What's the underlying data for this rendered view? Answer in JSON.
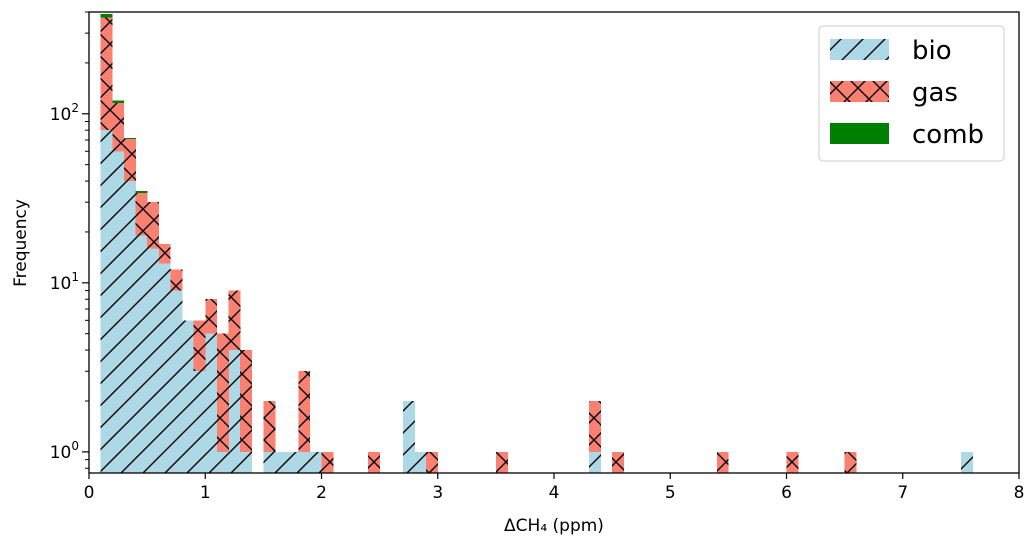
{
  "chart_data": {
    "type": "bar",
    "stacked": true,
    "log_y": true,
    "xlabel": "ΔCH₄  (ppm)",
    "ylabel": "Frequency",
    "xlim": [
      0,
      8
    ],
    "ylim": [
      0.75,
      400
    ],
    "bin_width": 0.1,
    "x_ticks": [
      "0",
      "1",
      "2",
      "3",
      "4",
      "5",
      "6",
      "7",
      "8"
    ],
    "y_ticks": [
      {
        "base": "10",
        "exp": "0"
      },
      {
        "base": "10",
        "exp": "1"
      },
      {
        "base": "10",
        "exp": "2"
      }
    ],
    "legend_position": "top-right",
    "series": [
      {
        "name": "bio",
        "color": "#add8e6",
        "hatch": "diagonal",
        "bins": [
          {
            "x0": 0.1,
            "v": 80
          },
          {
            "x0": 0.2,
            "v": 60
          },
          {
            "x0": 0.3,
            "v": 40
          },
          {
            "x0": 0.4,
            "v": 19
          },
          {
            "x0": 0.5,
            "v": 16
          },
          {
            "x0": 0.6,
            "v": 13
          },
          {
            "x0": 0.7,
            "v": 9
          },
          {
            "x0": 0.8,
            "v": 6
          },
          {
            "x0": 0.9,
            "v": 3
          },
          {
            "x0": 1.0,
            "v": 5
          },
          {
            "x0": 1.1,
            "v": 1
          },
          {
            "x0": 1.2,
            "v": 4
          },
          {
            "x0": 1.3,
            "v": 1
          },
          {
            "x0": 1.5,
            "v": 1
          },
          {
            "x0": 1.6,
            "v": 1
          },
          {
            "x0": 1.7,
            "v": 1
          },
          {
            "x0": 1.8,
            "v": 1
          },
          {
            "x0": 1.9,
            "v": 1
          },
          {
            "x0": 2.7,
            "v": 2
          },
          {
            "x0": 2.8,
            "v": 1
          },
          {
            "x0": 4.3,
            "v": 1
          },
          {
            "x0": 7.5,
            "v": 1
          }
        ]
      },
      {
        "name": "gas",
        "color": "#fa8072",
        "hatch": "cross",
        "bins": [
          {
            "x0": 0.1,
            "v": 290
          },
          {
            "x0": 0.2,
            "v": 56
          },
          {
            "x0": 0.3,
            "v": 31
          },
          {
            "x0": 0.4,
            "v": 15
          },
          {
            "x0": 0.5,
            "v": 14
          },
          {
            "x0": 0.6,
            "v": 4
          },
          {
            "x0": 0.7,
            "v": 3
          },
          {
            "x0": 0.8,
            "v": 0
          },
          {
            "x0": 0.9,
            "v": 3
          },
          {
            "x0": 1.0,
            "v": 3
          },
          {
            "x0": 1.1,
            "v": 4
          },
          {
            "x0": 1.2,
            "v": 5
          },
          {
            "x0": 1.3,
            "v": 3
          },
          {
            "x0": 1.5,
            "v": 1
          },
          {
            "x0": 1.8,
            "v": 2
          },
          {
            "x0": 2.0,
            "v": 1
          },
          {
            "x0": 2.4,
            "v": 1
          },
          {
            "x0": 2.9,
            "v": 1
          },
          {
            "x0": 3.5,
            "v": 1
          },
          {
            "x0": 4.3,
            "v": 1
          },
          {
            "x0": 4.5,
            "v": 1
          },
          {
            "x0": 5.4,
            "v": 1
          },
          {
            "x0": 6.0,
            "v": 1
          },
          {
            "x0": 6.5,
            "v": 1
          }
        ]
      },
      {
        "name": "comb",
        "color": "#008000",
        "hatch": "none",
        "bins": [
          {
            "x0": 0.1,
            "v": 20
          },
          {
            "x0": 0.2,
            "v": 4
          },
          {
            "x0": 0.3,
            "v": 1
          },
          {
            "x0": 0.4,
            "v": 1
          }
        ]
      }
    ]
  }
}
